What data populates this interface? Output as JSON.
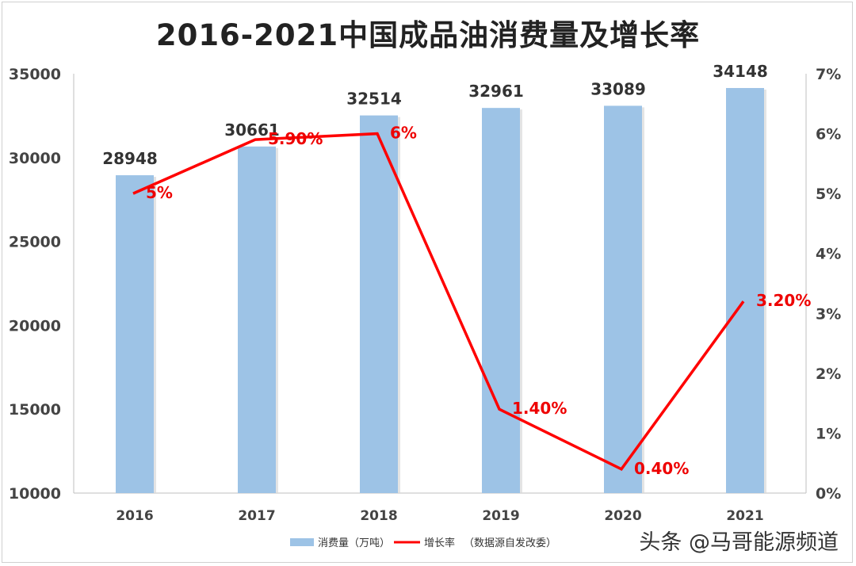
{
  "chart_data": {
    "type": "bar",
    "title": "2016-2021中国成品油消费量及增长率",
    "categories": [
      "2016",
      "2017",
      "2018",
      "2019",
      "2020",
      "2021"
    ],
    "series": [
      {
        "name": "消费量（万吨）",
        "type": "bar",
        "axis": "left",
        "values": [
          28948,
          30661,
          32514,
          32961,
          33089,
          34148
        ],
        "labels": [
          "28948",
          "30661",
          "32514",
          "32961",
          "33089",
          "34148"
        ],
        "color": "#9dc3e6"
      },
      {
        "name": "增长率",
        "type": "line",
        "axis": "right",
        "values": [
          5,
          5.9,
          6,
          1.4,
          0.4,
          3.2
        ],
        "labels": [
          "5%",
          "5.90%",
          "6%",
          "1.40%",
          "0.40%",
          "3.20%"
        ],
        "color": "#ff0000"
      }
    ],
    "ylim_left": [
      10000,
      35000
    ],
    "yticks_left": [
      "10000",
      "15000",
      "20000",
      "25000",
      "30000",
      "35000"
    ],
    "ylim_right": [
      0,
      7
    ],
    "yticks_right": [
      "0%",
      "1%",
      "2%",
      "3%",
      "4%",
      "5%",
      "6%",
      "7%"
    ],
    "legend_position": "bottom",
    "legend_note": "（数据源自发改委）",
    "grid": false
  },
  "watermark": "头条 @马哥能源频道"
}
